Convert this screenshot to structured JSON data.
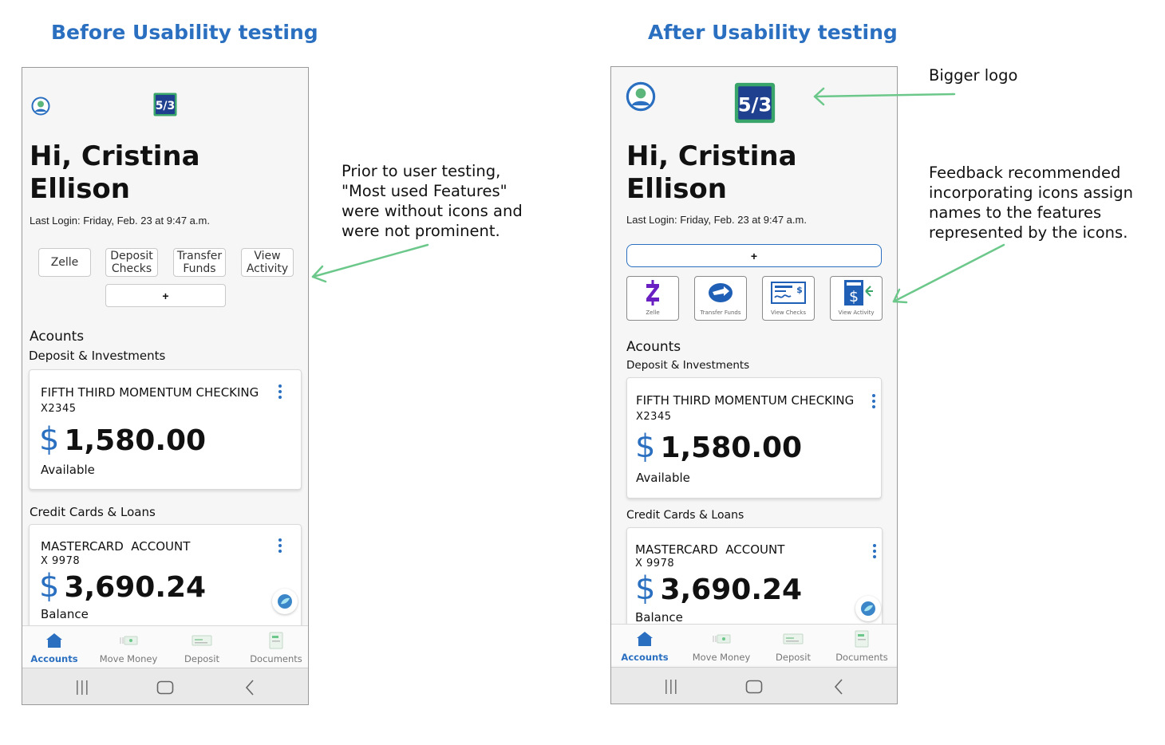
{
  "titles": {
    "before": "Before Usability testing",
    "after": "After Usability testing"
  },
  "before": {
    "greeting_line1": "Hi, Cristina",
    "greeting_line2": "Ellison",
    "last_login": "Last Login: Friday, Feb. 23 at 9:47 a.m.",
    "quick_buttons": [
      "Zelle",
      "Deposit Checks",
      "Transfer Funds",
      "View Activity"
    ],
    "plus_label": "+",
    "accounts_heading": "Acounts",
    "deposit_heading": "Deposit & Investments",
    "checking": {
      "name": "FIFTH THIRD MOMENTUM CHECKING",
      "number": "X2345",
      "currency": "$",
      "amount": "1,580.00",
      "status": "Available"
    },
    "credit_heading": "Credit Cards & Loans",
    "mastercard": {
      "name": "MASTERCARD  ACCOUNT",
      "number": "X 9978",
      "currency": "$",
      "amount": "3,690.24",
      "status": "Balance"
    },
    "nav": [
      "Accounts",
      "Move Money",
      "Deposit",
      "Documents"
    ]
  },
  "after": {
    "greeting_line1": "Hi, Cristina",
    "greeting_line2": "Ellison",
    "last_login": "Last Login: Friday, Feb. 23 at 9:47 a.m.",
    "plus_label": "+",
    "icon_buttons": [
      "Zelle",
      "Transfer Funds",
      "View Checks",
      "View Activity"
    ],
    "accounts_heading": "Acounts",
    "deposit_heading": "Deposit & Investments",
    "checking": {
      "name": "FIFTH THIRD MOMENTUM CHECKING",
      "number": "X2345",
      "currency": "$",
      "amount": "1,580.00",
      "status": "Available"
    },
    "credit_heading": "Credit Cards & Loans",
    "mastercard": {
      "name": "MASTERCARD  ACCOUNT",
      "number": "X 9978",
      "currency": "$",
      "amount": "3,690.24",
      "status": "Balance"
    },
    "nav": [
      "Accounts",
      "Move Money",
      "Deposit",
      "Documents"
    ]
  },
  "annotations": {
    "prior": [
      "Prior to user testing,",
      "\"Most used Features\"",
      "were without icons and",
      "were not prominent."
    ],
    "bigger_logo": "Bigger logo",
    "feedback": [
      "Feedback recommended",
      "incorporating icons assign",
      "names to the features",
      "represented by the icons."
    ]
  },
  "colors": {
    "accent_blue": "#2a6fc0",
    "logo_navy": "#1f3f8f",
    "logo_green": "#3aa56a",
    "arrow_green": "#6cc88a",
    "zelle_purple": "#6a1fc2"
  }
}
